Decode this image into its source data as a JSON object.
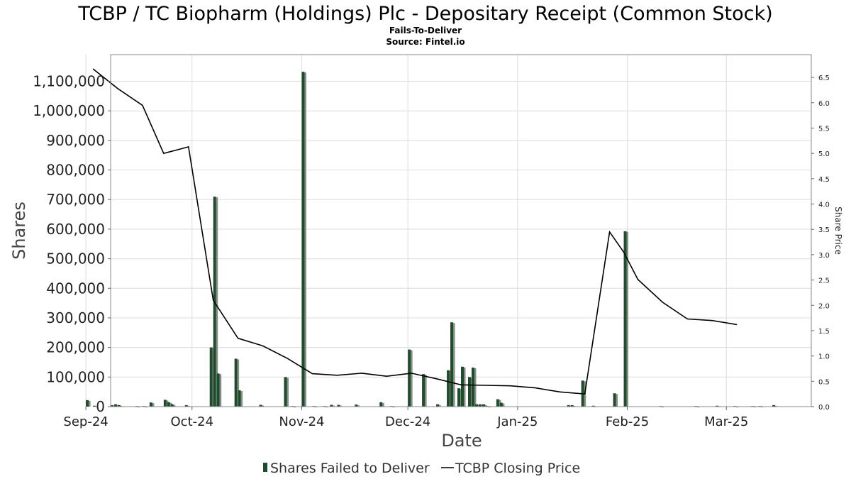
{
  "chart_data": {
    "type": "bar",
    "title": "TCBP / TC Biopharm (Holdings) Plc - Depositary Receipt (Common Stock)",
    "subtitle": "Fails-To-Deliver",
    "source": "Source: Fintel.io",
    "xlabel": "Date",
    "ylabel": "Shares",
    "y2label": "Share Price",
    "ylim": [
      0,
      1190000
    ],
    "y2lim": [
      0,
      6.95
    ],
    "x_range": [
      "2024-09-08",
      "2025-03-25"
    ],
    "yticks": [
      0,
      100000,
      200000,
      300000,
      400000,
      500000,
      600000,
      700000,
      800000,
      900000,
      1000000,
      1100000
    ],
    "yticklabels": [
      "0",
      "100,000",
      "200,000",
      "300,000",
      "400,000",
      "500,000",
      "600,000",
      "700,000",
      "800,000",
      "900,000",
      "1,000,000",
      "1,100,000"
    ],
    "y2ticks": [
      0.0,
      0.5,
      1.0,
      1.5,
      2.0,
      2.5,
      3.0,
      3.5,
      4.0,
      4.5,
      5.0,
      5.5,
      6.0,
      6.5
    ],
    "y2ticklabels": [
      "0.0",
      "0.5",
      "1.0",
      "1.5",
      "2.0",
      "2.5",
      "3.0",
      "3.5",
      "4.0",
      "4.5",
      "5.0",
      "5.5",
      "6.0",
      "6.5"
    ],
    "xticks": [
      {
        "date": "2024-09-01",
        "label": "Sep-24"
      },
      {
        "date": "2024-10-01",
        "label": "Oct-24"
      },
      {
        "date": "2024-11-01",
        "label": "Nov-24"
      },
      {
        "date": "2024-12-01",
        "label": "Dec-24"
      },
      {
        "date": "2025-01-01",
        "label": "Jan-25"
      },
      {
        "date": "2025-02-01",
        "label": "Feb-25"
      },
      {
        "date": "2025-03-01",
        "label": "Mar-25"
      }
    ],
    "grid": true,
    "legend_position": "bottom",
    "series": [
      {
        "name": "Shares Failed to Deliver",
        "type": "bar",
        "color": "#1e4d2b",
        "points": [
          {
            "x": "2024-09-01",
            "y": 22000
          },
          {
            "x": "2024-09-03",
            "y": 3000
          },
          {
            "x": "2024-09-08",
            "y": 5000
          },
          {
            "x": "2024-09-09",
            "y": 8000
          },
          {
            "x": "2024-09-10",
            "y": 5000
          },
          {
            "x": "2024-09-15",
            "y": 2000
          },
          {
            "x": "2024-09-17",
            "y": 2000
          },
          {
            "x": "2024-09-19",
            "y": 14000
          },
          {
            "x": "2024-09-23",
            "y": 23000
          },
          {
            "x": "2024-09-24",
            "y": 15000
          },
          {
            "x": "2024-09-25",
            "y": 8000
          },
          {
            "x": "2024-09-29",
            "y": 5000
          },
          {
            "x": "2024-10-06",
            "y": 200000
          },
          {
            "x": "2024-10-07",
            "y": 710000
          },
          {
            "x": "2024-10-08",
            "y": 112000
          },
          {
            "x": "2024-10-13",
            "y": 162000
          },
          {
            "x": "2024-10-14",
            "y": 55000
          },
          {
            "x": "2024-10-20",
            "y": 6000
          },
          {
            "x": "2024-10-27",
            "y": 100000
          },
          {
            "x": "2024-10-29",
            "y": 2000
          },
          {
            "x": "2024-11-01",
            "y": 1132000
          },
          {
            "x": "2024-11-04",
            "y": 2000
          },
          {
            "x": "2024-11-07",
            "y": 2000
          },
          {
            "x": "2024-11-09",
            "y": 6000
          },
          {
            "x": "2024-11-11",
            "y": 6000
          },
          {
            "x": "2024-11-16",
            "y": 7000
          },
          {
            "x": "2024-11-23",
            "y": 15000
          },
          {
            "x": "2024-11-26",
            "y": 2000
          },
          {
            "x": "2024-12-01",
            "y": 193000
          },
          {
            "x": "2024-12-05",
            "y": 110000
          },
          {
            "x": "2024-12-09",
            "y": 8000
          },
          {
            "x": "2024-12-12",
            "y": 123000
          },
          {
            "x": "2024-12-13",
            "y": 285000
          },
          {
            "x": "2024-12-15",
            "y": 62000
          },
          {
            "x": "2024-12-16",
            "y": 135000
          },
          {
            "x": "2024-12-18",
            "y": 100000
          },
          {
            "x": "2024-12-19",
            "y": 132000
          },
          {
            "x": "2024-12-20",
            "y": 8000
          },
          {
            "x": "2024-12-21",
            "y": 8000
          },
          {
            "x": "2024-12-22",
            "y": 8000
          },
          {
            "x": "2024-12-23",
            "y": 2000
          },
          {
            "x": "2024-12-26",
            "y": 25000
          },
          {
            "x": "2024-12-27",
            "y": 13000
          },
          {
            "x": "2025-01-15",
            "y": 5000
          },
          {
            "x": "2025-01-16",
            "y": 5000
          },
          {
            "x": "2025-01-19",
            "y": 88000
          },
          {
            "x": "2025-01-22",
            "y": 3000
          },
          {
            "x": "2025-01-28",
            "y": 45000
          },
          {
            "x": "2025-01-31",
            "y": 593000
          },
          {
            "x": "2025-02-10",
            "y": 2000
          },
          {
            "x": "2025-02-20",
            "y": 2000
          },
          {
            "x": "2025-02-26",
            "y": 3000
          },
          {
            "x": "2025-03-03",
            "y": 2000
          },
          {
            "x": "2025-03-08",
            "y": 2000
          },
          {
            "x": "2025-03-10",
            "y": 2000
          },
          {
            "x": "2025-03-14",
            "y": 5000
          }
        ]
      },
      {
        "name": "TCBP Closing Price",
        "type": "line",
        "color": "#000000",
        "axis": "right",
        "points": [
          {
            "x": "2024-09-03",
            "y": 6.67
          },
          {
            "x": "2024-09-10",
            "y": 6.28
          },
          {
            "x": "2024-09-17",
            "y": 5.95
          },
          {
            "x": "2024-09-23",
            "y": 5.0
          },
          {
            "x": "2024-09-30",
            "y": 5.13
          },
          {
            "x": "2024-10-07",
            "y": 2.1
          },
          {
            "x": "2024-10-14",
            "y": 1.35
          },
          {
            "x": "2024-10-21",
            "y": 1.2
          },
          {
            "x": "2024-10-28",
            "y": 0.95
          },
          {
            "x": "2024-11-04",
            "y": 0.65
          },
          {
            "x": "2024-11-11",
            "y": 0.62
          },
          {
            "x": "2024-11-18",
            "y": 0.66
          },
          {
            "x": "2024-11-25",
            "y": 0.6
          },
          {
            "x": "2024-12-02",
            "y": 0.66
          },
          {
            "x": "2024-12-09",
            "y": 0.55
          },
          {
            "x": "2024-12-16",
            "y": 0.43
          },
          {
            "x": "2024-12-23",
            "y": 0.42
          },
          {
            "x": "2024-12-30",
            "y": 0.41
          },
          {
            "x": "2025-01-06",
            "y": 0.37
          },
          {
            "x": "2025-01-13",
            "y": 0.29
          },
          {
            "x": "2025-01-20",
            "y": 0.25
          },
          {
            "x": "2025-01-27",
            "y": 3.45
          },
          {
            "x": "2025-01-31",
            "y": 3.05
          },
          {
            "x": "2025-02-04",
            "y": 2.51
          },
          {
            "x": "2025-02-11",
            "y": 2.06
          },
          {
            "x": "2025-02-18",
            "y": 1.73
          },
          {
            "x": "2025-02-25",
            "y": 1.7
          },
          {
            "x": "2025-03-04",
            "y": 1.62
          }
        ]
      }
    ]
  }
}
